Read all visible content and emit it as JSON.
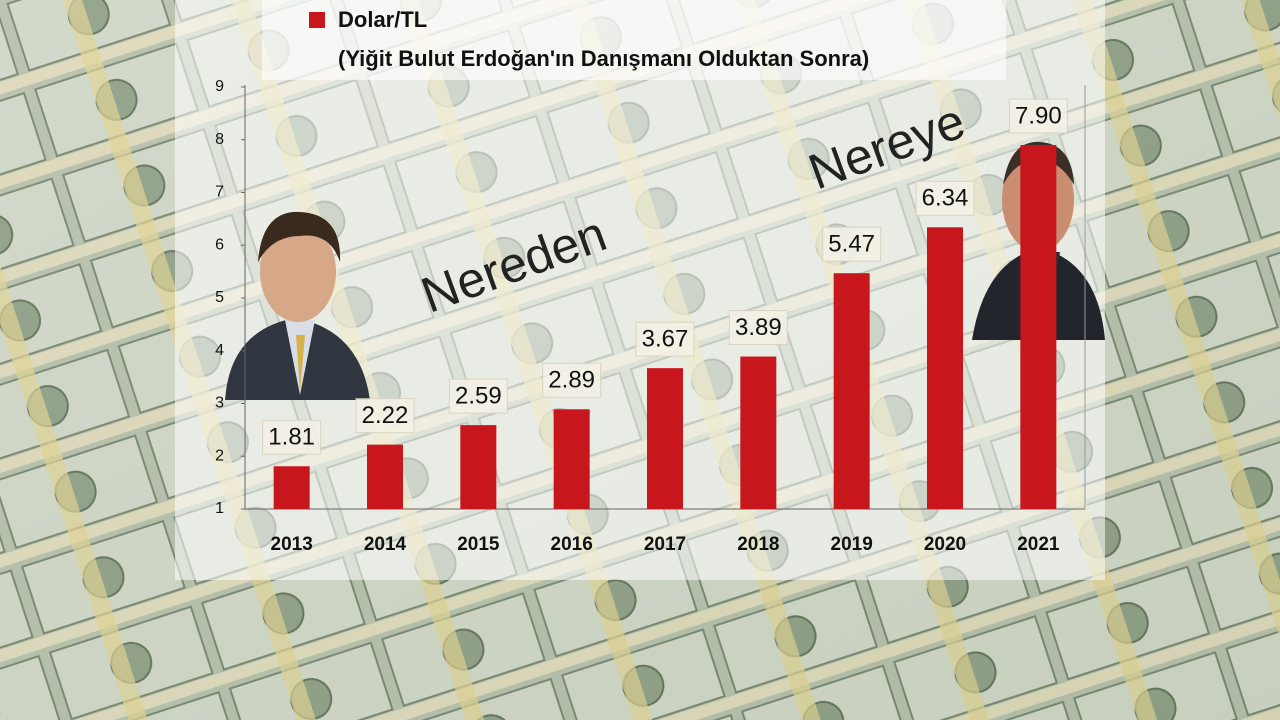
{
  "chart_data": {
    "type": "bar",
    "legend": "Dolar/TL",
    "subtitle": "(Yiğit Bulut Erdoğan'ın Danışmanı Olduktan Sonra)",
    "annotations": [
      "Nereden",
      "Nereye"
    ],
    "categories": [
      "2013",
      "2014",
      "2015",
      "2016",
      "2017",
      "2018",
      "2019",
      "2020",
      "2021"
    ],
    "values": [
      1.81,
      2.22,
      2.59,
      2.89,
      3.67,
      3.89,
      5.47,
      6.34,
      7.9
    ],
    "value_labels": [
      "1.81",
      "2.22",
      "2.59",
      "2.89",
      "3.67",
      "3.89",
      "5.47",
      "6.34",
      "7.90"
    ],
    "color": "#c8161d",
    "ylim": [
      1,
      9
    ],
    "yticks": [
      1,
      2,
      3,
      4,
      5,
      6,
      7,
      8,
      9
    ],
    "grid": false
  }
}
